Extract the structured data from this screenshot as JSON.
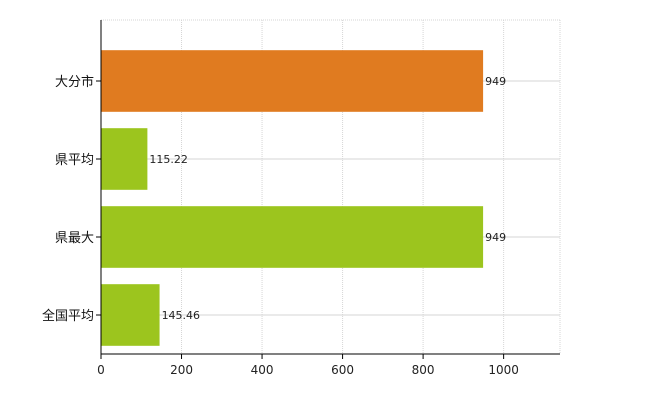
{
  "chart_data": {
    "type": "bar",
    "orientation": "horizontal",
    "categories": [
      "大分市",
      "県平均",
      "県最大",
      "全国平均"
    ],
    "values": [
      949,
      115.22,
      949,
      145.46
    ],
    "data_labels": [
      "949",
      "115.22",
      "949",
      "145.46"
    ],
    "bar_colors": [
      "#e07b20",
      "#9cc51e",
      "#9cc51e",
      "#9cc51e"
    ],
    "xlim": [
      0,
      1140
    ],
    "xticks": [
      0,
      200,
      400,
      600,
      800,
      1000
    ],
    "grid": true,
    "title": "",
    "xlabel": "",
    "ylabel": ""
  }
}
